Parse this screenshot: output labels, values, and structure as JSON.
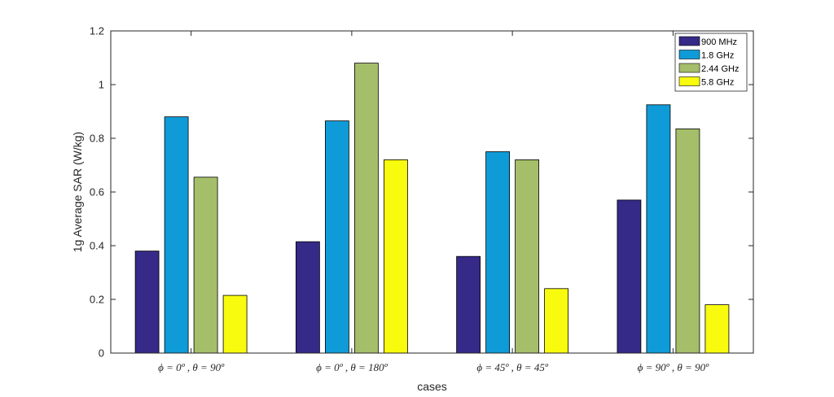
{
  "chart_data": {
    "type": "bar",
    "categories": [
      "ϕ = 0º , θ = 90º",
      "ϕ = 0º , θ = 180º",
      "ϕ = 45º , θ = 45º",
      "ϕ = 90º , θ = 90º"
    ],
    "series": [
      {
        "name": "900 MHz",
        "color": "#352a87",
        "values": [
          0.38,
          0.415,
          0.36,
          0.57
        ]
      },
      {
        "name": "1.8 GHz",
        "color": "#0f9bd7",
        "values": [
          0.88,
          0.865,
          0.75,
          0.925
        ]
      },
      {
        "name": "2.44 GHz",
        "color": "#a5be6a",
        "values": [
          0.655,
          1.08,
          0.72,
          0.835
        ]
      },
      {
        "name": "5.8 GHz",
        "color": "#f9fb0e",
        "values": [
          0.215,
          0.72,
          0.24,
          0.18
        ]
      }
    ],
    "xlabel": "cases",
    "ylabel": "1g Average SAR (W/kg)",
    "ylim": [
      0,
      1.2
    ],
    "yticks": [
      "0",
      "0.2",
      "0.4",
      "0.6",
      "0.8",
      "1",
      "1.2"
    ],
    "grid": false,
    "legend_position": "top-right"
  }
}
